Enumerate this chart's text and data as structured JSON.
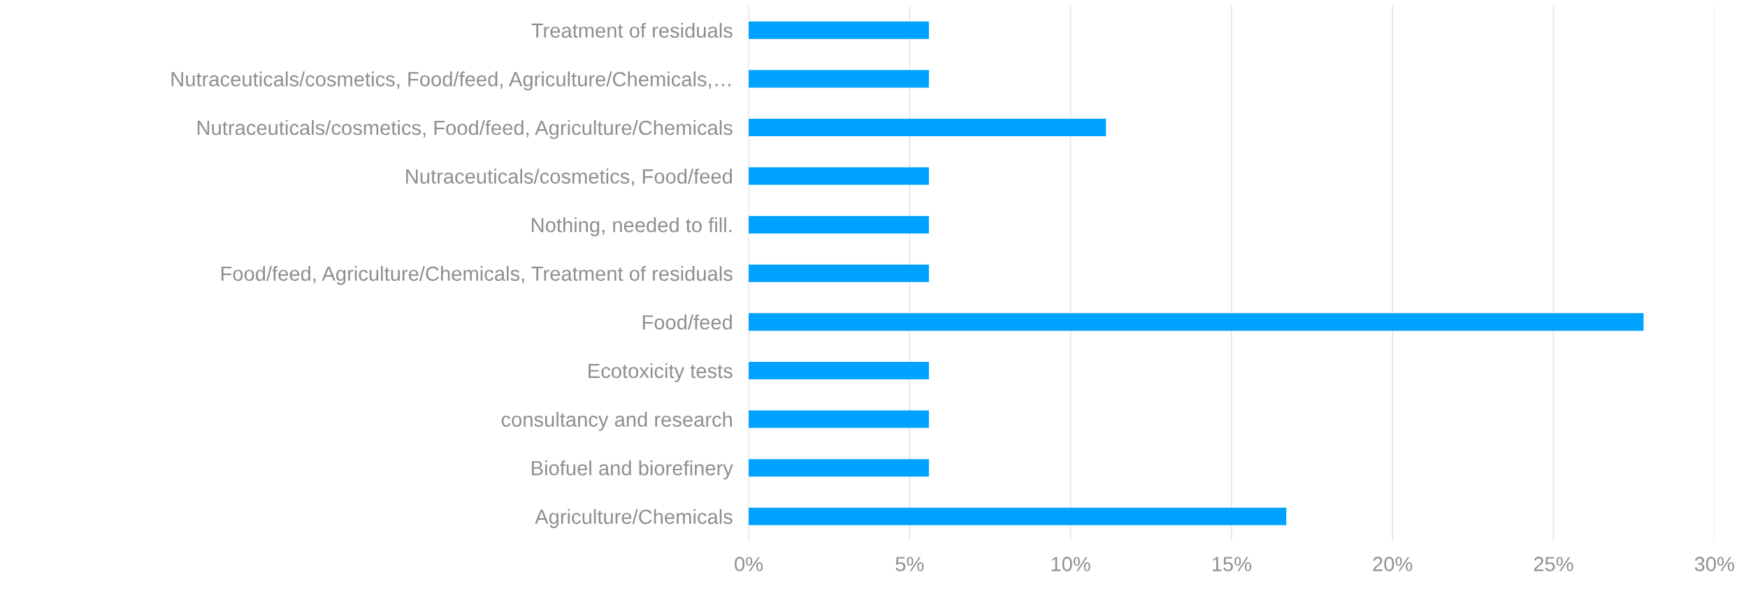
{
  "chart_data": {
    "type": "bar",
    "orientation": "horizontal",
    "categories": [
      "Treatment of residuals",
      "Nutraceuticals/cosmetics, Food/feed, Agriculture/Chemicals,…",
      "Nutraceuticals/cosmetics, Food/feed, Agriculture/Chemicals",
      "Nutraceuticals/cosmetics, Food/feed",
      "Nothing, needed to fill.",
      "Food/feed, Agriculture/Chemicals, Treatment of residuals",
      "Food/feed",
      "Ecotoxicity tests",
      "consultancy and research",
      "Biofuel and biorefinery",
      "Agriculture/Chemicals"
    ],
    "values": [
      5.6,
      5.6,
      11.1,
      5.6,
      5.6,
      5.6,
      27.8,
      5.6,
      5.6,
      5.6,
      16.7
    ],
    "color": "#00a2ff",
    "xlim": [
      0,
      30
    ],
    "xticks": [
      {
        "value": 0,
        "label": "0%"
      },
      {
        "value": 5,
        "label": "5%"
      },
      {
        "value": 10,
        "label": "10%"
      },
      {
        "value": 15,
        "label": "15%"
      },
      {
        "value": 20,
        "label": "20%"
      },
      {
        "value": 25,
        "label": "25%"
      },
      {
        "value": 30,
        "label": "30%"
      }
    ],
    "grid": "x"
  }
}
